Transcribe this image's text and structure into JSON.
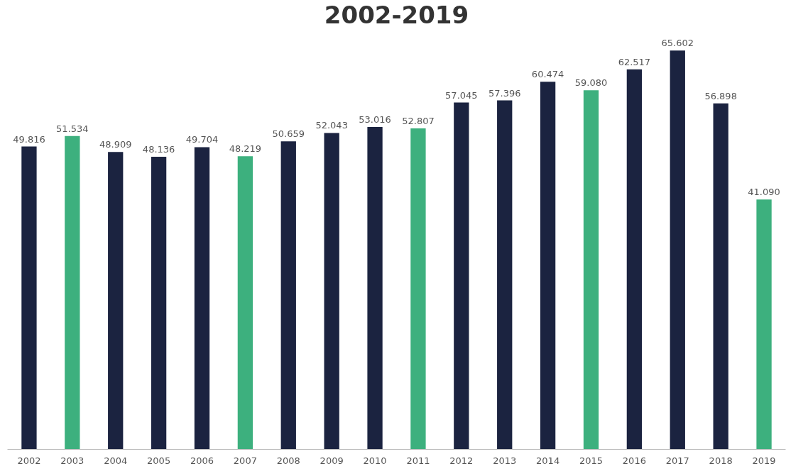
{
  "chart_data": {
    "type": "bar",
    "title": "2002-2019",
    "categories": [
      "2002",
      "2003",
      "2004",
      "2005",
      "2006",
      "2007",
      "2008",
      "2009",
      "2010",
      "2011",
      "2012",
      "2013",
      "2014",
      "2015",
      "2016",
      "2017",
      "2018",
      "2019"
    ],
    "values": [
      49.816,
      51.534,
      48.909,
      48.136,
      49.704,
      48.219,
      50.659,
      52.043,
      53.016,
      52.807,
      57.045,
      57.396,
      60.474,
      59.08,
      62.517,
      65.602,
      56.898,
      41.09
    ],
    "value_labels": [
      "49.816",
      "51.534",
      "48.909",
      "48.136",
      "49.704",
      "48.219",
      "50.659",
      "52.043",
      "53.016",
      "52.807",
      "57.045",
      "57.396",
      "60.474",
      "59.080",
      "62.517",
      "65.602",
      "56.898",
      "41.090"
    ],
    "colors": [
      "#1b2340",
      "#3db07e",
      "#1b2340",
      "#1b2340",
      "#1b2340",
      "#3db07e",
      "#1b2340",
      "#1b2340",
      "#1b2340",
      "#3db07e",
      "#1b2340",
      "#1b2340",
      "#1b2340",
      "#3db07e",
      "#1b2340",
      "#1b2340",
      "#1b2340",
      "#3db07e"
    ],
    "grid": false
  }
}
